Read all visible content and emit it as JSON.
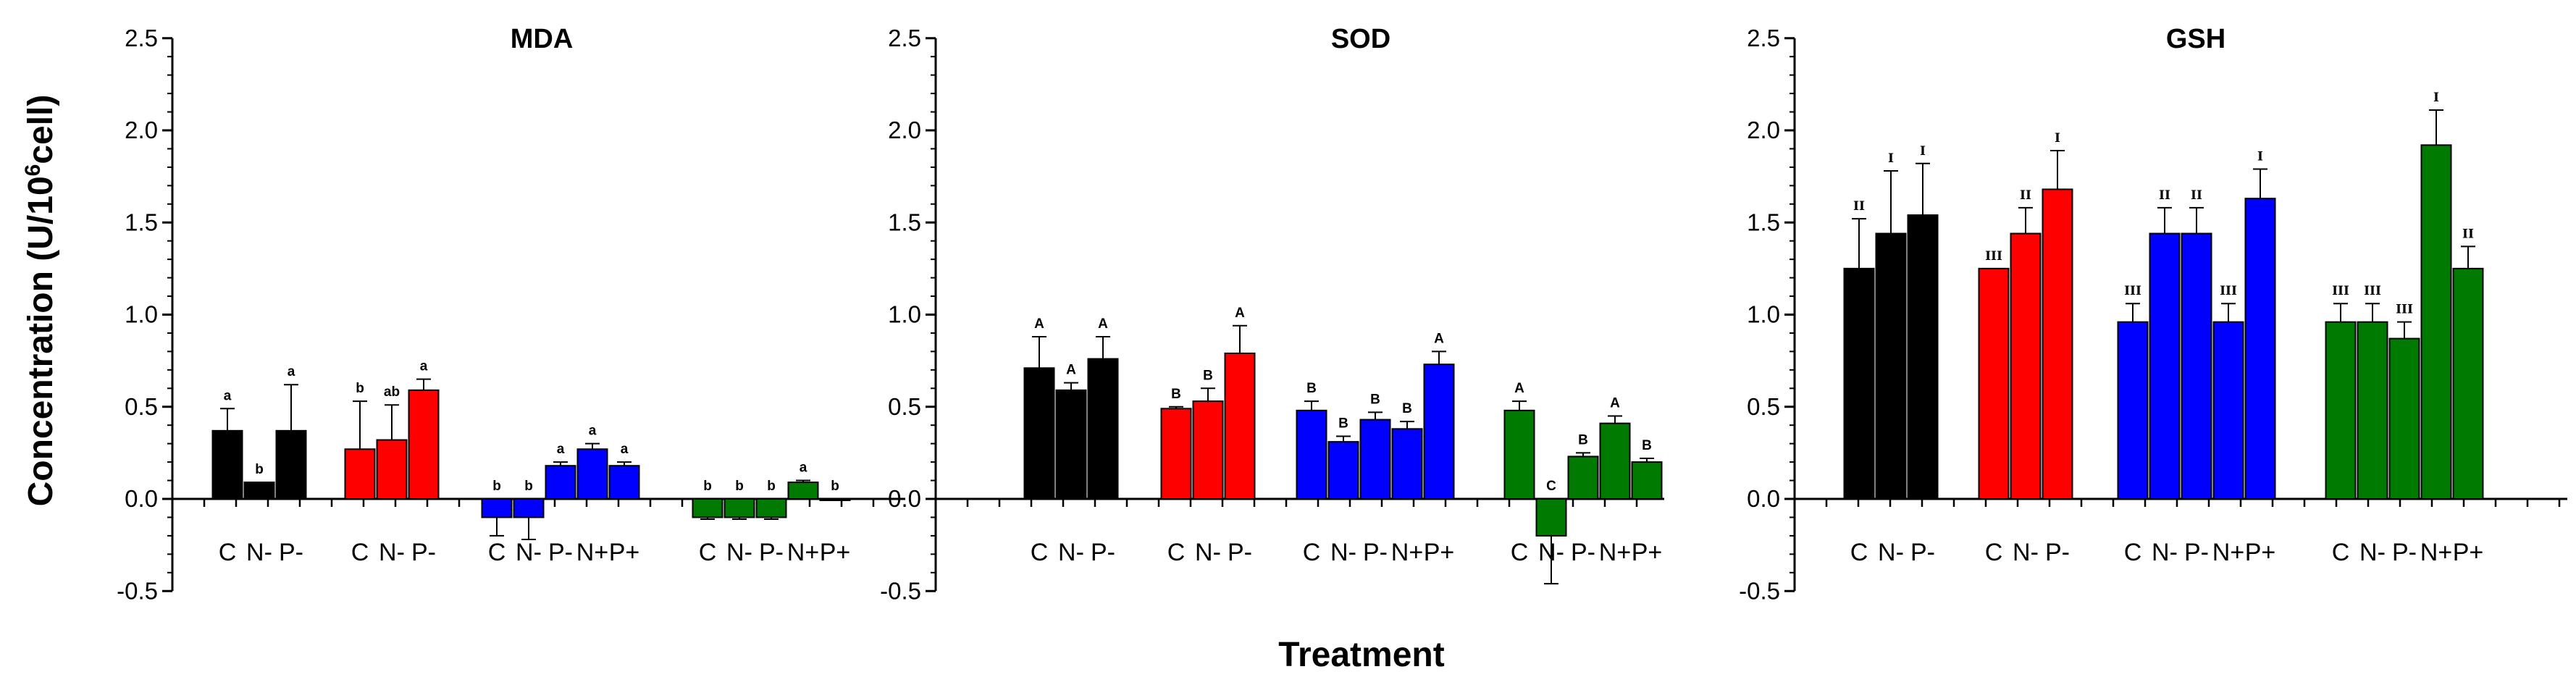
{
  "chart_data": {
    "type": "bar",
    "ylabel_main": "Concentration (U/10",
    "ylabel_sup": "6",
    "ylabel_tail": "cell)",
    "xlabel": "Treatment",
    "ylim": [
      -0.5,
      2.5
    ],
    "yticks": [
      "-0.5",
      "0.0",
      "0.5",
      "1.0",
      "1.5",
      "2.0",
      "2.5"
    ],
    "colors": [
      "#000000",
      "#ff0000",
      "#0000ff",
      "#007a00"
    ],
    "panels": [
      {
        "title": "MDA",
        "groups": [
          {
            "categories": [
              "C",
              "N-",
              "P-"
            ],
            "values": [
              0.37,
              0.09,
              0.37
            ],
            "errors": [
              0.12,
              0.0,
              0.25
            ],
            "labels": [
              "a",
              "b",
              "a"
            ]
          },
          {
            "categories": [
              "C",
              "N-",
              "P-"
            ],
            "values": [
              0.27,
              0.32,
              0.59
            ],
            "errors": [
              0.26,
              0.19,
              0.06
            ],
            "labels": [
              "b",
              "ab",
              "a"
            ]
          },
          {
            "categories": [
              "C",
              "N-",
              "P-",
              "N+",
              "P+"
            ],
            "values": [
              -0.1,
              -0.1,
              0.18,
              0.27,
              0.18
            ],
            "errors": [
              0.1,
              0.12,
              0.02,
              0.03,
              0.02
            ],
            "labels": [
              "b",
              "b",
              "a",
              "a",
              "a"
            ]
          },
          {
            "categories": [
              "C",
              "N-",
              "P-",
              "N+",
              "P+"
            ],
            "values": [
              -0.1,
              -0.1,
              -0.1,
              0.09,
              0.0
            ],
            "errors": [
              0.01,
              0.01,
              0.01,
              0.01,
              0.0
            ],
            "labels": [
              "b",
              "b",
              "b",
              "a",
              "b"
            ]
          }
        ]
      },
      {
        "title": "SOD",
        "groups": [
          {
            "categories": [
              "C",
              "N-",
              "P-"
            ],
            "values": [
              0.71,
              0.59,
              0.76
            ],
            "errors": [
              0.17,
              0.04,
              0.12
            ],
            "labels": [
              "A",
              "A",
              "A"
            ]
          },
          {
            "categories": [
              "C",
              "N-",
              "P-"
            ],
            "values": [
              0.49,
              0.53,
              0.79
            ],
            "errors": [
              0.01,
              0.07,
              0.15
            ],
            "labels": [
              "B",
              "B",
              "A"
            ]
          },
          {
            "categories": [
              "C",
              "N-",
              "P-",
              "N+",
              "P+"
            ],
            "values": [
              0.48,
              0.31,
              0.43,
              0.38,
              0.73
            ],
            "errors": [
              0.05,
              0.03,
              0.04,
              0.04,
              0.07
            ],
            "labels": [
              "B",
              "B",
              "B",
              "B",
              "A"
            ]
          },
          {
            "categories": [
              "C",
              "N-",
              "P-",
              "N+",
              "P+"
            ],
            "values": [
              0.48,
              -0.2,
              0.23,
              0.41,
              0.2
            ],
            "errors": [
              0.05,
              0.26,
              0.02,
              0.04,
              0.02
            ],
            "labels": [
              "A",
              "C",
              "B",
              "A",
              "B"
            ]
          }
        ]
      },
      {
        "title": "GSH",
        "groups": [
          {
            "categories": [
              "C",
              "N-",
              "P-"
            ],
            "values": [
              1.25,
              1.44,
              1.54
            ],
            "errors": [
              0.27,
              0.34,
              0.28
            ],
            "labels": [
              "II",
              "I",
              "I"
            ]
          },
          {
            "categories": [
              "C",
              "N-",
              "P-"
            ],
            "values": [
              1.25,
              1.44,
              1.68
            ],
            "errors": [
              0.0,
              0.14,
              0.21
            ],
            "labels": [
              "III",
              "II",
              "I"
            ]
          },
          {
            "categories": [
              "C",
              "N-",
              "P-",
              "N+",
              "P+"
            ],
            "values": [
              0.96,
              1.44,
              1.44,
              0.96,
              1.63
            ],
            "errors": [
              0.1,
              0.14,
              0.14,
              0.1,
              0.16
            ],
            "labels": [
              "III",
              "II",
              "II",
              "III",
              "I"
            ]
          },
          {
            "categories": [
              "C",
              "N-",
              "P-",
              "N+",
              "P+"
            ],
            "values": [
              0.96,
              0.96,
              0.87,
              1.92,
              1.25
            ],
            "errors": [
              0.1,
              0.1,
              0.09,
              0.19,
              0.12
            ],
            "labels": [
              "III",
              "III",
              "III",
              "I",
              "II"
            ]
          }
        ]
      }
    ]
  }
}
